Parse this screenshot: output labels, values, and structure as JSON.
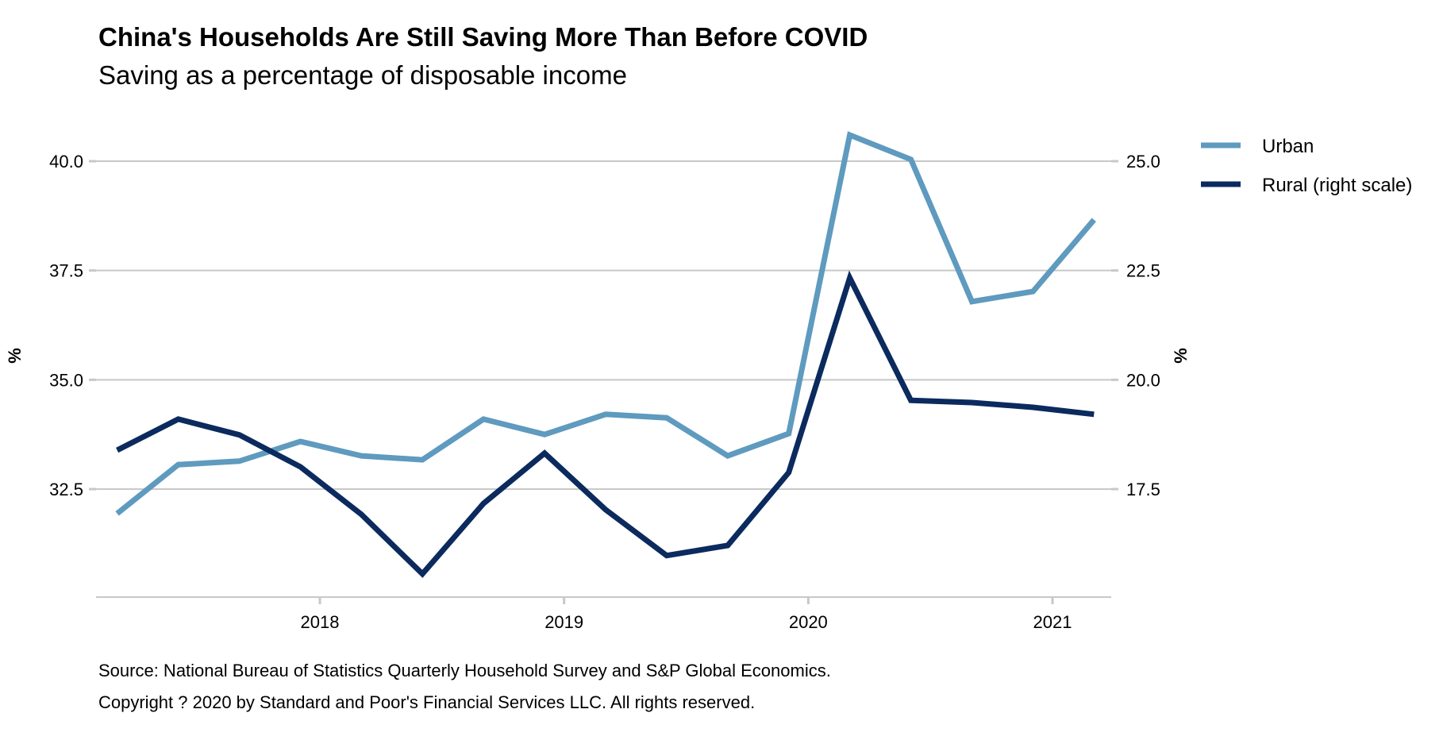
{
  "header": {
    "title": "China's Households Are Still Saving More Than Before COVID",
    "subtitle": "Saving as a percentage of disposable income"
  },
  "footer": {
    "source": "Source: National Bureau of Statistics Quarterly Household Survey and S&P Global Economics.",
    "copyright": "Copyright ? 2020 by Standard and Poor's Financial Services LLC. All rights reserved."
  },
  "chart_data": {
    "type": "line",
    "title": "China's Households Are Still Saving More Than Before COVID",
    "subtitle": "Saving as a percentage of disposable income",
    "xlabel": "",
    "ylabel": "%",
    "ylabel_right": "%",
    "x_ticks": [
      2018,
      2019,
      2020,
      2021
    ],
    "x_tick_labels": [
      "2018",
      "2019",
      "2020",
      "2021"
    ],
    "xlim": [
      2017.08,
      2021.24
    ],
    "y_left_ticks": [
      32.5,
      35.0,
      37.5,
      40.0
    ],
    "y_left_tick_labels": [
      "32.5",
      "35.0",
      "37.5",
      "40.0"
    ],
    "y_right_ticks": [
      17.5,
      20.0,
      22.5,
      25.0
    ],
    "y_right_tick_labels": [
      "17.5",
      "20.0",
      "22.5",
      "25.0"
    ],
    "ylim_left": [
      30.0,
      41.0
    ],
    "ylim_right": [
      15.0,
      26.0
    ],
    "grid": true,
    "legend_position": "top-right, outside plot",
    "categories": [
      "Q1 2017",
      "Q2 2017",
      "Q3 2017",
      "Q4 2017",
      "Q1 2018",
      "Q2 2018",
      "Q3 2018",
      "Q4 2018",
      "Q1 2019",
      "Q2 2019",
      "Q3 2019",
      "Q4 2019",
      "Q1 2020",
      "Q2 2020",
      "Q3 2020",
      "Q4 2020",
      "Q1 2021"
    ],
    "x": [
      2017.17,
      2017.42,
      2017.67,
      2017.92,
      2018.17,
      2018.42,
      2018.67,
      2018.92,
      2019.17,
      2019.42,
      2019.67,
      2019.92,
      2020.17,
      2020.42,
      2020.67,
      2020.92,
      2021.17
    ],
    "series": [
      {
        "name": "Urban",
        "axis": "left",
        "color": "#5f9abf",
        "values": [
          31.94,
          33.06,
          33.14,
          33.59,
          33.26,
          33.17,
          34.1,
          33.75,
          34.21,
          34.13,
          33.26,
          33.77,
          40.6,
          40.04,
          36.79,
          37.02,
          38.66
        ]
      },
      {
        "name": "Rural (right scale)",
        "axis": "right",
        "color": "#0b2a5e",
        "values": [
          18.39,
          19.1,
          18.74,
          18.01,
          16.92,
          15.56,
          17.17,
          18.32,
          17.03,
          15.98,
          16.21,
          17.88,
          22.33,
          19.53,
          19.48,
          19.37,
          19.21
        ]
      }
    ],
    "legend": [
      "Urban",
      "Rural (right scale)"
    ],
    "styles": {
      "grid_color": "#c8c8c8",
      "axis_color": "#c8c8c8"
    }
  }
}
